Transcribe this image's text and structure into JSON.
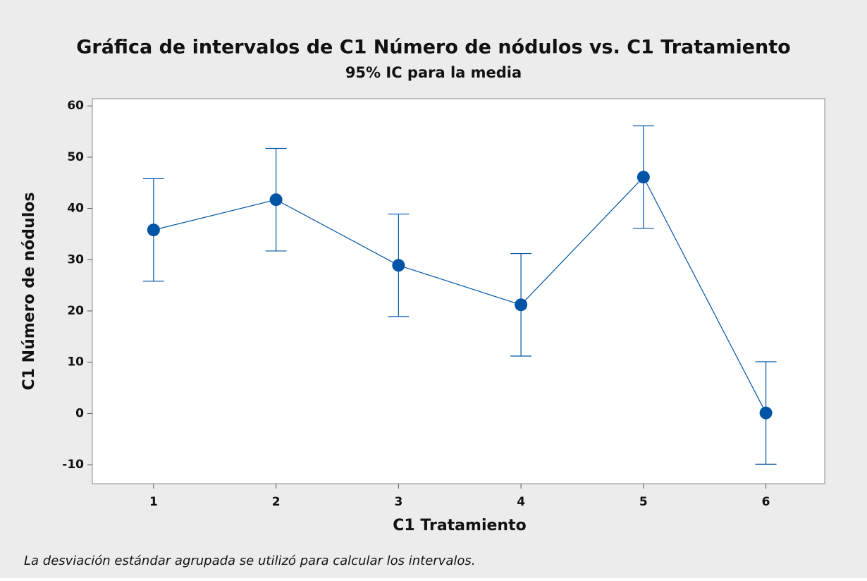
{
  "chart_data": {
    "type": "interval",
    "title": "Gráfica de intervalos de C1 Número de nódulos vs. C1 Tratamiento",
    "subtitle": "95% IC para la media",
    "x_label": "C1 Tratamiento",
    "y_label": "C1 Número de nódulos",
    "footnote": "La desviación estándar agrupada se utilizó para calcular los intervalos.",
    "x": [
      1,
      2,
      3,
      4,
      5,
      6
    ],
    "values": [
      35.8,
      41.7,
      28.9,
      21.2,
      46.1,
      0.1
    ],
    "errors": [
      10,
      10,
      10,
      10,
      10,
      10
    ],
    "color": "#0054a6",
    "xlim": [
      0.5,
      6.48
    ],
    "xticks": [
      1,
      2,
      3,
      4,
      5,
      6
    ],
    "ylim": [
      -13.7,
      61.4
    ],
    "yticks": [
      -10,
      0,
      10,
      20,
      30,
      40,
      50,
      60
    ]
  }
}
